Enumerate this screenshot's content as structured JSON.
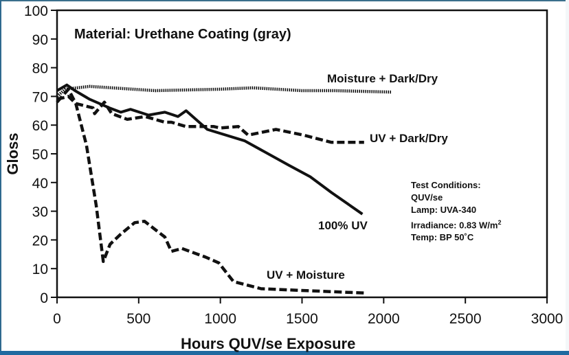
{
  "chart_data": {
    "type": "line",
    "title": "Material: Urethane Coating (gray)",
    "xlabel": "Hours QUV/se Exposure",
    "ylabel": "Gloss",
    "xlim": [
      0,
      3000
    ],
    "ylim": [
      0,
      100
    ],
    "xticks": [
      0,
      500,
      1000,
      1500,
      2000,
      2500,
      3000
    ],
    "yticks": [
      0,
      10,
      20,
      30,
      40,
      50,
      60,
      70,
      80,
      90,
      100
    ],
    "grid": false,
    "series": [
      {
        "name": "Moisture + Dark/Dry",
        "style": "dotted",
        "x": [
          0,
          50,
          200,
          600,
          1000,
          1200,
          1500,
          1700,
          2050
        ],
        "y": [
          70,
          72.5,
          73.5,
          72,
          72.5,
          73,
          72,
          72,
          71.5
        ]
      },
      {
        "name": "100% UV",
        "style": "solid",
        "x": [
          0,
          60,
          110,
          200,
          320,
          390,
          450,
          560,
          660,
          740,
          790,
          920,
          1150,
          1420,
          1550,
          1680,
          1870
        ],
        "y": [
          72,
          74,
          72,
          69,
          66,
          64.5,
          65.5,
          63.5,
          64.5,
          63,
          65,
          58.5,
          54.5,
          46,
          42,
          36.5,
          29
        ]
      },
      {
        "name": "UV + Dark/Dry",
        "style": "dashed",
        "x": [
          0,
          70,
          115,
          220,
          230,
          290,
          335,
          430,
          540,
          660,
          700,
          790,
          960,
          1000,
          1110,
          1170,
          1340,
          1510,
          1680,
          1880
        ],
        "y": [
          69,
          70,
          67.5,
          66,
          64,
          68,
          64,
          62,
          63,
          61,
          61,
          59.5,
          59.5,
          59,
          59.5,
          56.5,
          58.5,
          56.5,
          54,
          54
        ]
      },
      {
        "name": "UV + Moisture",
        "style": "dashed",
        "x": [
          0,
          70,
          115,
          180,
          240,
          283,
          325,
          390,
          475,
          535,
          660,
          700,
          765,
          910,
          990,
          1080,
          1250,
          1460,
          1880
        ],
        "y": [
          68,
          72.5,
          67.5,
          53,
          32,
          12.5,
          18.5,
          22,
          26,
          26.5,
          21,
          16,
          17,
          14,
          12,
          5.5,
          3,
          2.5,
          1.5
        ]
      }
    ],
    "annotations": {
      "moisture_dark_dry": "Moisture + Dark/Dry",
      "uv_dark_dry": "UV + Dark/Dry",
      "uv_100": "100% UV",
      "uv_moisture": "UV + Moisture"
    },
    "test_conditions": {
      "heading": "Test Conditions:",
      "device": "QUV/se",
      "lamp": "Lamp: UVA-340",
      "irradiance": "Irradiance: 0.83 W/m",
      "irradiance_sup": "2",
      "temp": "Temp: BP 50˚C"
    }
  },
  "colors": {
    "line": "#111111",
    "frame_blue": "#1f6aa0"
  }
}
